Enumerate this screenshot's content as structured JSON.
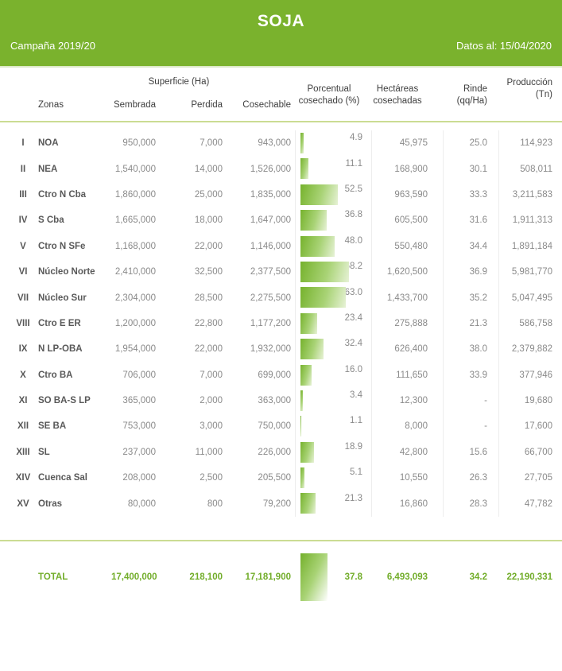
{
  "header": {
    "title": "SOJA",
    "campaign": "Campaña 2019/20",
    "date_label": "Datos al: 15/04/2020"
  },
  "columns": {
    "zonas": "Zonas",
    "superficie_group": "Superficie (Ha)",
    "sembrada": "Sembrada",
    "perdida": "Perdida",
    "cosechable": "Cosechable",
    "porcentual_line1": "Porcentual",
    "porcentual_line2": "cosechado (%)",
    "hectareas_line1": "Hectáreas",
    "hectareas_line2": "cosechadas",
    "rinde_line1": "Rinde",
    "rinde_line2": "(qq/Ha)",
    "produccion": "Producción (Tn)"
  },
  "accent_color": "#7ab22d",
  "table": {
    "rows": [
      {
        "numeral": "I",
        "zona": "NOA",
        "sembrada": "950,000",
        "perdida": "7,000",
        "cosechable": "943,000",
        "pct": "4.9",
        "hectareas": "45,975",
        "rinde": "25.0",
        "produccion": "114,923"
      },
      {
        "numeral": "II",
        "zona": "NEA",
        "sembrada": "1,540,000",
        "perdida": "14,000",
        "cosechable": "1,526,000",
        "pct": "11.1",
        "hectareas": "168,900",
        "rinde": "30.1",
        "produccion": "508,011"
      },
      {
        "numeral": "III",
        "zona": "Ctro N Cba",
        "sembrada": "1,860,000",
        "perdida": "25,000",
        "cosechable": "1,835,000",
        "pct": "52.5",
        "hectareas": "963,590",
        "rinde": "33.3",
        "produccion": "3,211,583"
      },
      {
        "numeral": "IV",
        "zona": "S Cba",
        "sembrada": "1,665,000",
        "perdida": "18,000",
        "cosechable": "1,647,000",
        "pct": "36.8",
        "hectareas": "605,500",
        "rinde": "31.6",
        "produccion": "1,911,313"
      },
      {
        "numeral": "V",
        "zona": "Ctro N SFe",
        "sembrada": "1,168,000",
        "perdida": "22,000",
        "cosechable": "1,146,000",
        "pct": "48.0",
        "hectareas": "550,480",
        "rinde": "34.4",
        "produccion": "1,891,184"
      },
      {
        "numeral": "VI",
        "zona": "Núcleo Norte",
        "sembrada": "2,410,000",
        "perdida": "32,500",
        "cosechable": "2,377,500",
        "pct": "68.2",
        "hectareas": "1,620,500",
        "rinde": "36.9",
        "produccion": "5,981,770"
      },
      {
        "numeral": "VII",
        "zona": "Núcleo Sur",
        "sembrada": "2,304,000",
        "perdida": "28,500",
        "cosechable": "2,275,500",
        "pct": "63.0",
        "hectareas": "1,433,700",
        "rinde": "35.2",
        "produccion": "5,047,495"
      },
      {
        "numeral": "VIII",
        "zona": "Ctro E ER",
        "sembrada": "1,200,000",
        "perdida": "22,800",
        "cosechable": "1,177,200",
        "pct": "23.4",
        "hectareas": "275,888",
        "rinde": "21.3",
        "produccion": "586,758"
      },
      {
        "numeral": "IX",
        "zona": "N LP-OBA",
        "sembrada": "1,954,000",
        "perdida": "22,000",
        "cosechable": "1,932,000",
        "pct": "32.4",
        "hectareas": "626,400",
        "rinde": "38.0",
        "produccion": "2,379,882"
      },
      {
        "numeral": "X",
        "zona": "Ctro BA",
        "sembrada": "706,000",
        "perdida": "7,000",
        "cosechable": "699,000",
        "pct": "16.0",
        "hectareas": "111,650",
        "rinde": "33.9",
        "produccion": "377,946"
      },
      {
        "numeral": "XI",
        "zona": "SO BA-S LP",
        "sembrada": "365,000",
        "perdida": "2,000",
        "cosechable": "363,000",
        "pct": "3.4",
        "hectareas": "12,300",
        "rinde": "-",
        "produccion": "19,680"
      },
      {
        "numeral": "XII",
        "zona": "SE BA",
        "sembrada": "753,000",
        "perdida": "3,000",
        "cosechable": "750,000",
        "pct": "1.1",
        "hectareas": "8,000",
        "rinde": "-",
        "produccion": "17,600"
      },
      {
        "numeral": "XIII",
        "zona": "SL",
        "sembrada": "237,000",
        "perdida": "11,000",
        "cosechable": "226,000",
        "pct": "18.9",
        "hectareas": "42,800",
        "rinde": "15.6",
        "produccion": "66,700"
      },
      {
        "numeral": "XIV",
        "zona": "Cuenca Sal",
        "sembrada": "208,000",
        "perdida": "2,500",
        "cosechable": "205,500",
        "pct": "5.1",
        "hectareas": "10,550",
        "rinde": "26.3",
        "produccion": "27,705"
      },
      {
        "numeral": "XV",
        "zona": "Otras",
        "sembrada": "80,000",
        "perdida": "800",
        "cosechable": "79,200",
        "pct": "21.3",
        "hectareas": "16,860",
        "rinde": "28.3",
        "produccion": "47,782"
      }
    ],
    "total": {
      "label": "TOTAL",
      "sembrada": "17,400,000",
      "perdida": "218,100",
      "cosechable": "17,181,900",
      "pct": "37.8",
      "hectareas": "6,493,093",
      "rinde": "34.2",
      "produccion": "22,190,331"
    }
  }
}
